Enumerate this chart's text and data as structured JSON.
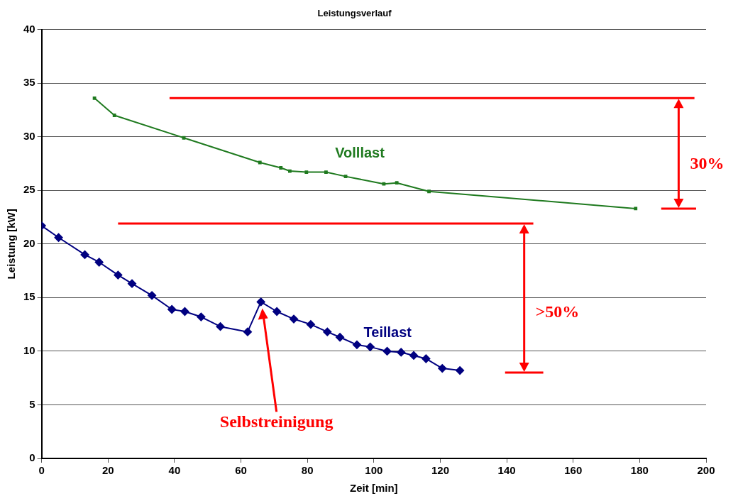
{
  "chart_data": {
    "type": "line",
    "title": "Leistungsverlauf",
    "xlabel": "Zeit [min]",
    "ylabel": "Leistung [kW]",
    "xlim": [
      0,
      200
    ],
    "xticks": [
      0,
      20,
      40,
      60,
      80,
      100,
      120,
      140,
      160,
      180,
      200
    ],
    "ylim": [
      0,
      40
    ],
    "yticks": [
      0,
      5,
      10,
      15,
      20,
      25,
      30,
      35,
      40
    ],
    "grid": "y",
    "legend": false,
    "series": [
      {
        "name": "Volllast",
        "color": "#1f7a1f",
        "marker": "square",
        "x": [
          15.9,
          21.9,
          42.8,
          65.7,
          72,
          74.7,
          79.7,
          85.6,
          91.5,
          103,
          106.9,
          116.6,
          178.8
        ],
        "values": [
          33.6,
          32.0,
          29.9,
          27.6,
          27.1,
          26.8,
          26.7,
          26.7,
          26.3,
          25.6,
          25.7,
          24.9,
          23.3
        ]
      },
      {
        "name": "Teillast",
        "color": "#000080",
        "marker": "diamond",
        "x": [
          0,
          5.1,
          13,
          17.3,
          23,
          27.2,
          33.2,
          39.2,
          43.1,
          48,
          53.8,
          62,
          66,
          70.8,
          75.9,
          81,
          86,
          89.8,
          94.9,
          98.9,
          104,
          108.2,
          112,
          115.7,
          120.6,
          125.9
        ],
        "values": [
          21.7,
          20.6,
          19.0,
          18.3,
          17.1,
          16.3,
          15.2,
          13.9,
          13.7,
          13.2,
          12.3,
          11.8,
          14.6,
          13.7,
          13.0,
          12.5,
          11.8,
          11.3,
          10.6,
          10.4,
          10.0,
          9.9,
          9.6,
          9.3,
          8.4,
          8.2
        ]
      },
      {
        "color": "#ff0000",
        "marker": "none",
        "x": [
          38.5,
          196.5
        ],
        "values": [
          33.6,
          33.6
        ]
      },
      {
        "color": "#ff0000",
        "marker": "none",
        "x": [
          186.5,
          197
        ],
        "values": [
          23.3,
          23.3
        ]
      },
      {
        "color": "#ff0000",
        "marker": "none",
        "x": [
          23,
          148
        ],
        "values": [
          21.9,
          21.9
        ]
      },
      {
        "color": "#ff0000",
        "marker": "none",
        "x": [
          139.5,
          151
        ],
        "values": [
          8,
          8
        ]
      }
    ],
    "annotations": [
      "30%",
      ">50%",
      "Selbstreinigung"
    ]
  }
}
